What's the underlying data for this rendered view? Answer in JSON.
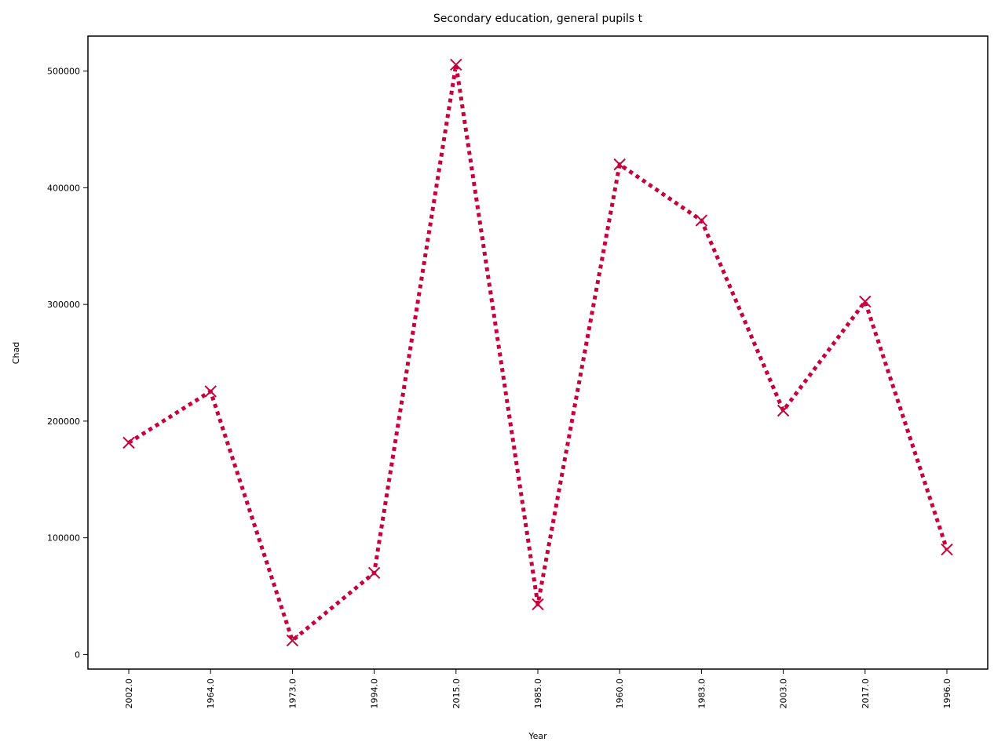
{
  "chart_data": {
    "type": "line",
    "title": "Secondary education, general pupils t",
    "xlabel": "Year",
    "ylabel": "Chad",
    "categories": [
      "2002.0",
      "1964.0",
      "1973.0",
      "1994.0",
      "2015.0",
      "1985.0",
      "1960.0",
      "1983.0",
      "2003.0",
      "2017.0",
      "1996.0"
    ],
    "series": [
      {
        "values": [
          181500,
          225500,
          12000,
          70000,
          505500,
          43000,
          420000,
          372000,
          209000,
          302500,
          90000
        ],
        "color": "#c8003c",
        "line_style": "dotted",
        "marker": "x"
      }
    ],
    "ylim": [
      -12500,
      530000
    ],
    "yticks": [
      0,
      100000,
      200000,
      300000,
      400000,
      500000
    ],
    "ytick_labels": [
      "0",
      "100000",
      "200000",
      "300000",
      "400000",
      "500000"
    ],
    "grid": false,
    "legend": "none"
  }
}
